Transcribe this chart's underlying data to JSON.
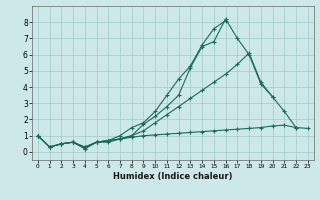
{
  "xlabel": "Humidex (Indice chaleur)",
  "bg_color": "#cce8e8",
  "grid_color": "#aacece",
  "line_color": "#1a6b5a",
  "xlim": [
    -0.5,
    23.5
  ],
  "ylim": [
    -0.5,
    9.0
  ],
  "xticks": [
    0,
    1,
    2,
    3,
    4,
    5,
    6,
    7,
    8,
    9,
    10,
    11,
    12,
    13,
    14,
    15,
    16,
    17,
    18,
    19,
    20,
    21,
    22,
    23
  ],
  "yticks": [
    0,
    1,
    2,
    3,
    4,
    5,
    6,
    7,
    8
  ],
  "series": [
    {
      "x": [
        0,
        1,
        2,
        3,
        4,
        5,
        6,
        7,
        8,
        9,
        10,
        11,
        12,
        13,
        14,
        15,
        16,
        17,
        18,
        19,
        20,
        21,
        22
      ],
      "y": [
        1.0,
        0.3,
        0.5,
        0.6,
        0.2,
        0.6,
        0.6,
        0.8,
        1.0,
        1.7,
        2.2,
        2.8,
        3.5,
        5.2,
        6.5,
        6.8,
        8.2,
        7.0,
        6.0,
        4.2,
        3.4,
        2.5,
        1.5
      ]
    },
    {
      "x": [
        0,
        1,
        2,
        3,
        4,
        5,
        6,
        7,
        8,
        9,
        10,
        11,
        12,
        13,
        14,
        15,
        16
      ],
      "y": [
        1.0,
        0.3,
        0.5,
        0.6,
        0.2,
        0.6,
        0.7,
        1.0,
        1.5,
        1.8,
        2.5,
        3.5,
        4.5,
        5.3,
        6.6,
        7.6,
        8.1
      ]
    },
    {
      "x": [
        0,
        1,
        2,
        3,
        4,
        5,
        6,
        7,
        8,
        9,
        10,
        11,
        12,
        13,
        14,
        15,
        16,
        17,
        18,
        19,
        20
      ],
      "y": [
        1.0,
        0.3,
        0.5,
        0.6,
        0.3,
        0.6,
        0.7,
        0.8,
        1.0,
        1.3,
        1.8,
        2.3,
        2.8,
        3.3,
        3.8,
        4.3,
        4.8,
        5.4,
        6.1,
        4.3,
        3.4
      ]
    },
    {
      "x": [
        0,
        1,
        2,
        3,
        4,
        5,
        6,
        7,
        8,
        9,
        10,
        11,
        12,
        13,
        14,
        15,
        16,
        17,
        18,
        19,
        20,
        21,
        22,
        23
      ],
      "y": [
        1.0,
        0.3,
        0.5,
        0.6,
        0.3,
        0.6,
        0.7,
        0.8,
        0.9,
        1.0,
        1.05,
        1.1,
        1.15,
        1.2,
        1.25,
        1.3,
        1.35,
        1.4,
        1.45,
        1.5,
        1.6,
        1.65,
        1.5,
        1.45
      ]
    }
  ]
}
